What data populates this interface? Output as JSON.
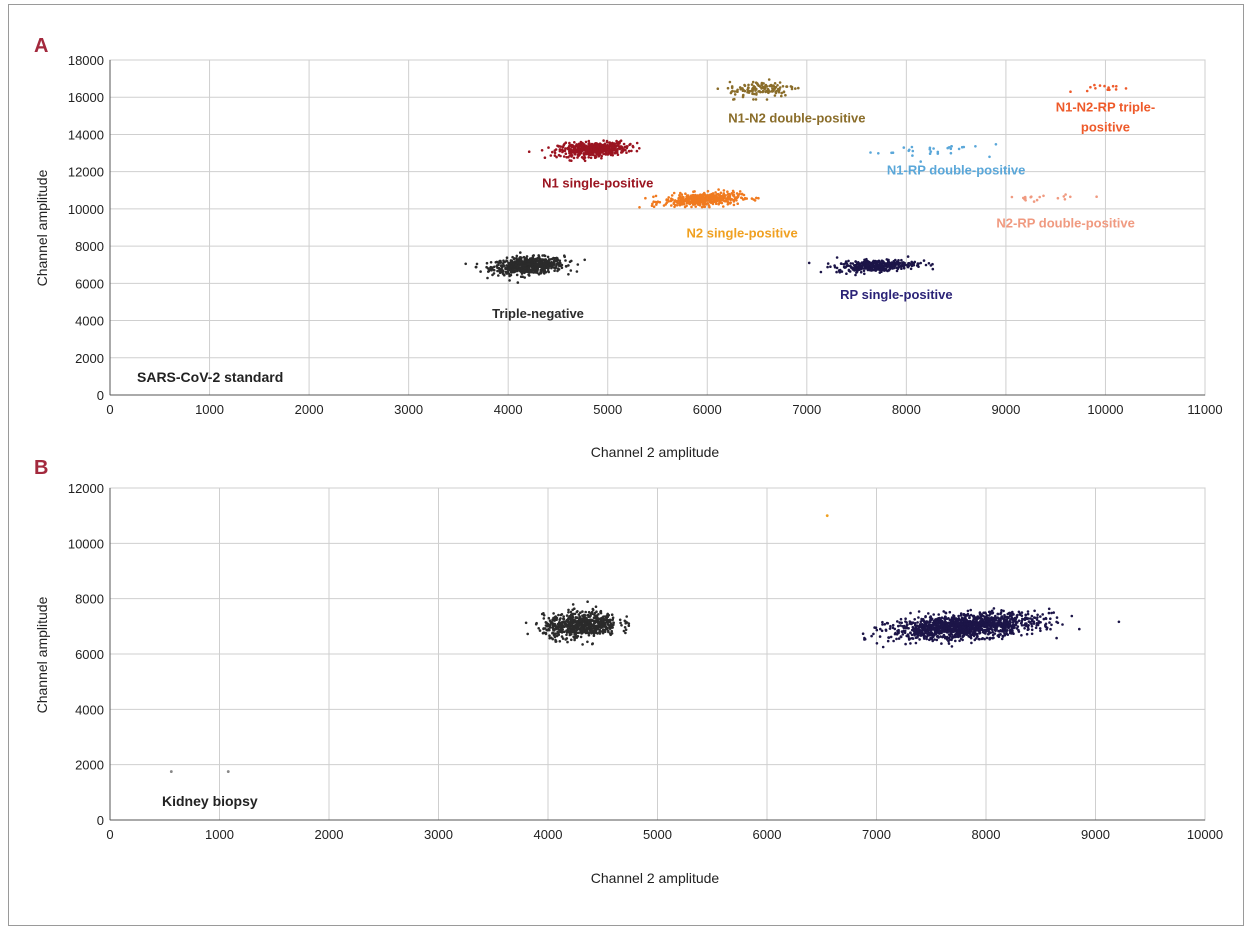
{
  "chart_data": [
    {
      "type": "scatter",
      "panel": "A",
      "xlabel": "Channel 2 amplitude",
      "ylabel": "Channel amplitude",
      "xlim": [
        0,
        11000
      ],
      "ylim": [
        0,
        18000
      ],
      "x_ticks": [
        0,
        1000,
        2000,
        3000,
        4000,
        5000,
        6000,
        7000,
        8000,
        9000,
        10000,
        11000
      ],
      "y_ticks": [
        0,
        2000,
        4000,
        6000,
        8000,
        10000,
        12000,
        14000,
        16000,
        18000
      ],
      "grid": true,
      "sample_label": "SARS-CoV-2 standard",
      "clusters": [
        {
          "name": "Triple-negative",
          "color": "#2b2b2b",
          "center": [
            4200,
            6950
          ],
          "spread": [
            180,
            220
          ],
          "count": 700,
          "label_at": [
            4300,
            4150
          ]
        },
        {
          "name": "N1 single-positive",
          "color": "#9b1420",
          "center": [
            4850,
            13200
          ],
          "spread": [
            170,
            190
          ],
          "count": 500,
          "label_at": [
            4900,
            11150
          ]
        },
        {
          "name": "N2 single-positive",
          "color": "#f07a1f",
          "center": [
            5950,
            10500
          ],
          "spread": [
            190,
            170
          ],
          "count": 450,
          "label_at": [
            6350,
            8450
          ]
        },
        {
          "name": "N1-N2 double-positive",
          "color": "#8a6d2a",
          "center": [
            6550,
            16450
          ],
          "spread": [
            170,
            230
          ],
          "count": 130,
          "label_at": [
            6900,
            14650
          ]
        },
        {
          "name": "RP single-positive",
          "color": "#1c1548",
          "center": [
            7700,
            6950
          ],
          "spread": [
            200,
            150
          ],
          "count": 380,
          "label_at": [
            7900,
            5150
          ]
        },
        {
          "name": "N1-RP double-positive",
          "color": "#5aa7d9",
          "center": [
            8200,
            13150
          ],
          "spread": [
            280,
            200
          ],
          "count": 30,
          "label_at": [
            8500,
            11850
          ]
        },
        {
          "name": "N2-RP double-positive",
          "color": "#f09a80",
          "center": [
            9250,
            10580
          ],
          "spread": [
            200,
            90
          ],
          "count": 18,
          "label_at": [
            9600,
            9000
          ]
        },
        {
          "name": "N1-N2-RP triple-positive",
          "color": "#ee5a2a",
          "center": [
            9950,
            16480
          ],
          "spread": [
            150,
            120
          ],
          "count": 14,
          "label_at": [
            9950,
            14850
          ]
        }
      ],
      "annotations": [
        {
          "text": "Triple-negative",
          "color": "#2b2b2b"
        },
        {
          "text": "N1 single-positive",
          "color": "#9b1420"
        },
        {
          "text": "N2 single-positive",
          "color": "#f0a020"
        },
        {
          "text": "N1-N2 double-positive",
          "color": "#8a6d2a"
        },
        {
          "text": "RP single-positive",
          "color": "#2b2377"
        },
        {
          "text": "N1-RP double-positive",
          "color": "#5aa7d9"
        },
        {
          "text": "N2-RP double-positive",
          "color": "#f09a80"
        },
        {
          "text": "N1-N2-RP triple-",
          "color": "#ee5a2a"
        },
        {
          "text": "positive",
          "color": "#ee5a2a"
        }
      ]
    },
    {
      "type": "scatter",
      "panel": "B",
      "xlabel": "Channel 2 amplitude",
      "ylabel": "Channel amplitude",
      "xlim": [
        0,
        10000
      ],
      "ylim": [
        0,
        12000
      ],
      "x_ticks": [
        0,
        1000,
        2000,
        3000,
        4000,
        5000,
        6000,
        7000,
        8000,
        9000,
        10000
      ],
      "y_ticks": [
        0,
        2000,
        4000,
        6000,
        8000,
        10000,
        12000
      ],
      "grid": true,
      "sample_label": "Kidney biopsy",
      "clusters": [
        {
          "color": "#2b2b2b",
          "center": [
            4300,
            7050
          ],
          "spread": [
            170,
            230
          ],
          "count": 650
        },
        {
          "color": "#1c1548",
          "center": [
            7800,
            7000
          ],
          "spread": [
            330,
            210
          ],
          "count": 1400
        }
      ],
      "outliers": [
        {
          "x": 6550,
          "y": 11000,
          "color": "#f0a020"
        },
        {
          "x": 560,
          "y": 1750,
          "color": "#888888"
        },
        {
          "x": 1080,
          "y": 1750,
          "color": "#888888"
        }
      ]
    }
  ],
  "panels": {
    "A": {
      "letter": "A",
      "xlabel": "Channel 2 amplitude",
      "ylabel": "Channel amplitude",
      "sample": "SARS-CoV-2 standard"
    },
    "B": {
      "letter": "B",
      "xlabel": "Channel 2 amplitude",
      "ylabel": "Channel amplitude",
      "sample": "Kidney biopsy"
    }
  }
}
